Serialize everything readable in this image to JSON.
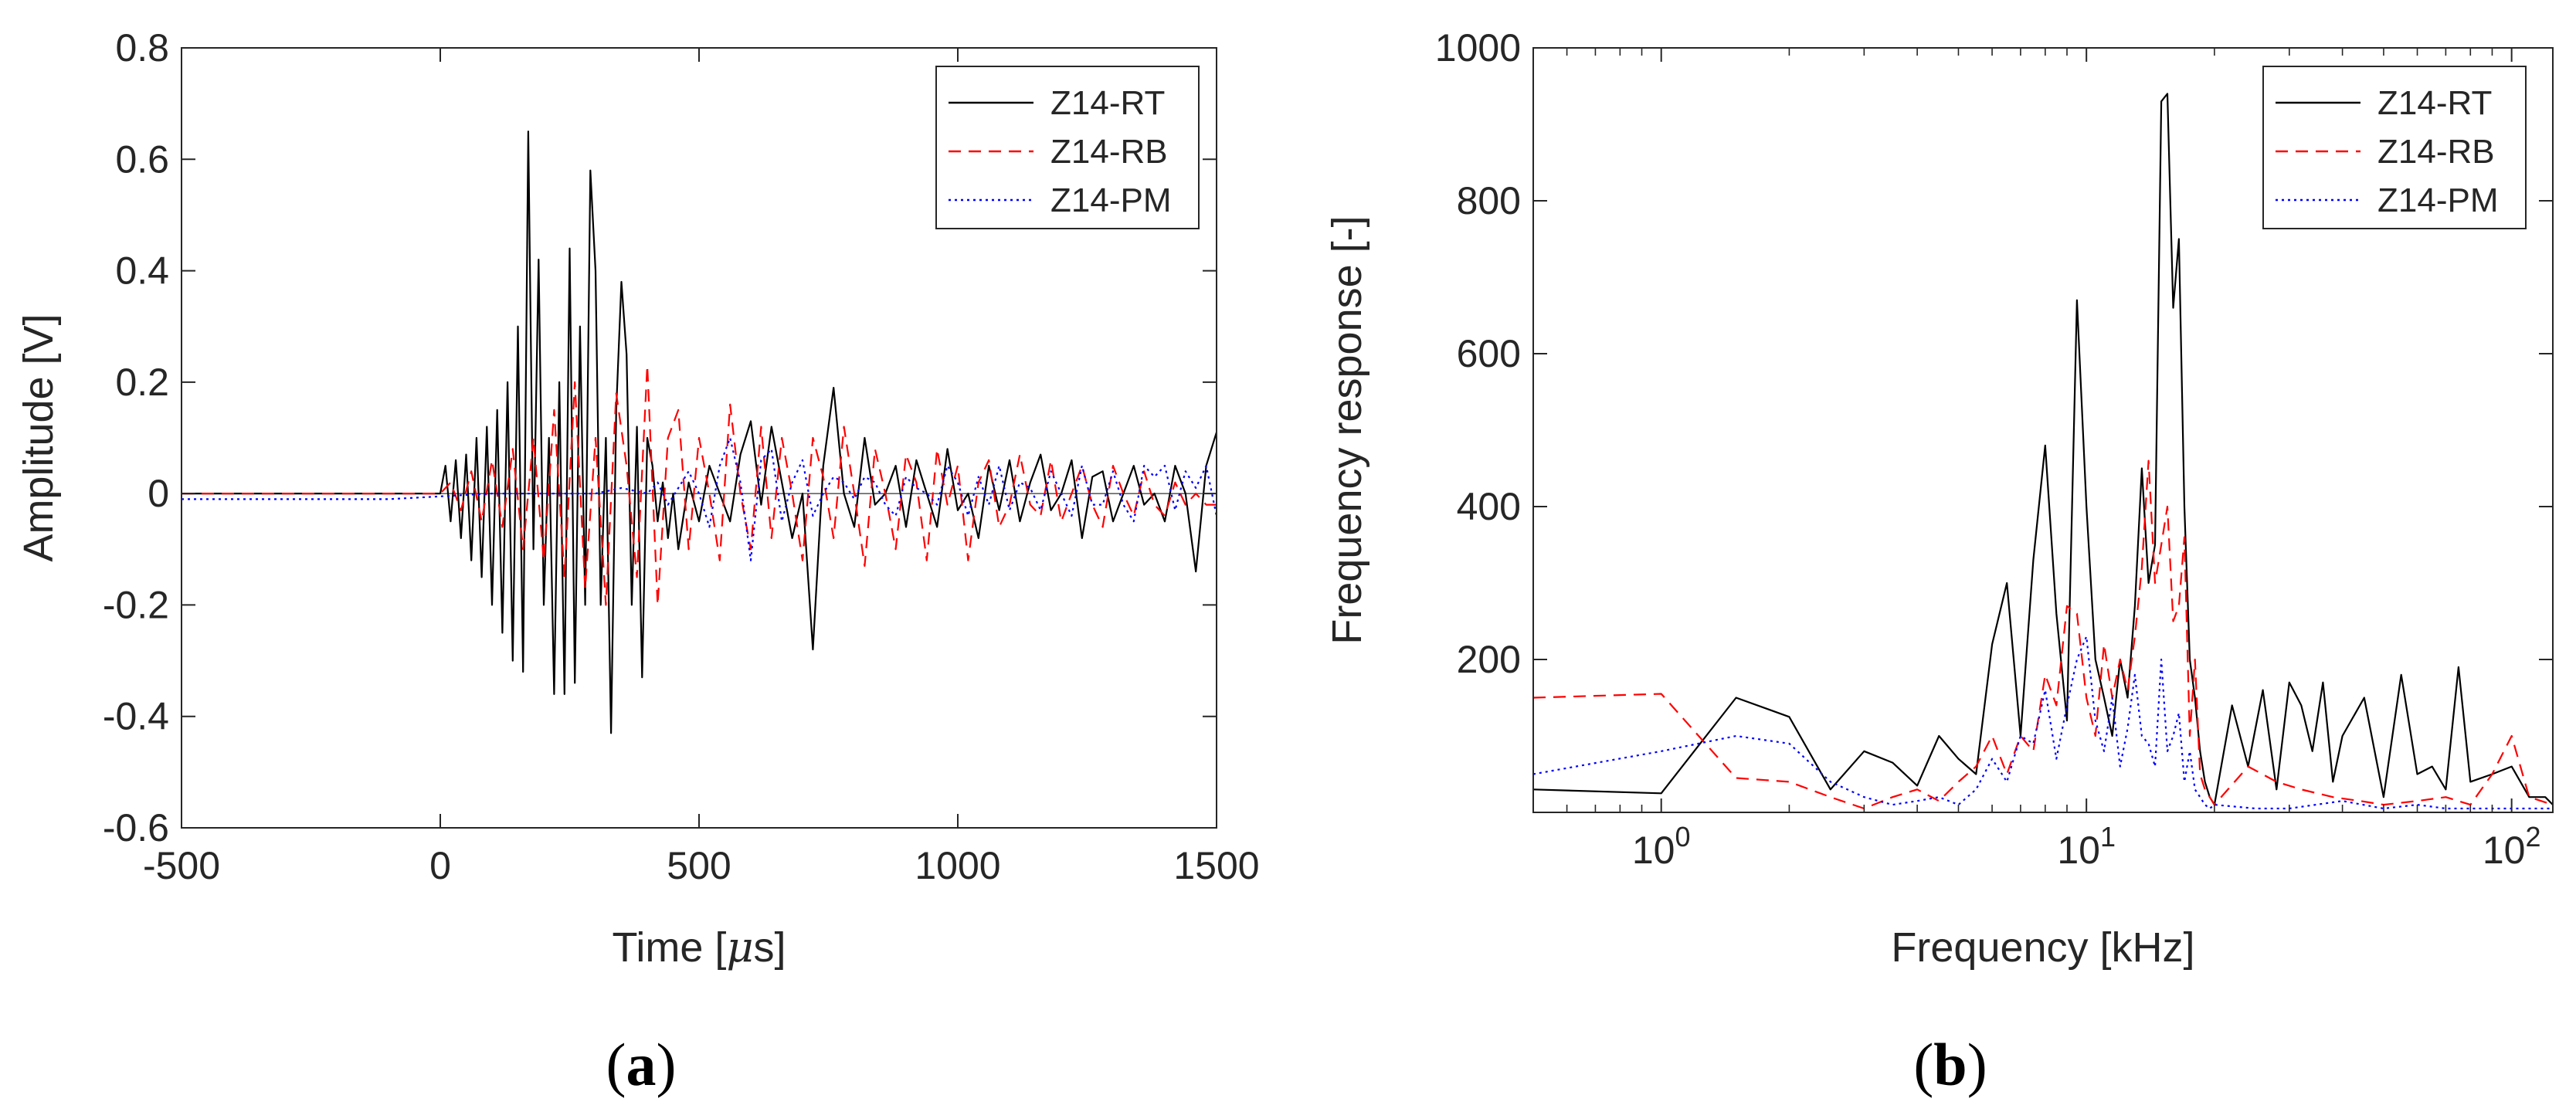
{
  "chart_data": [
    {
      "type": "line",
      "panel_label": {
        "open": "(",
        "letter": "a",
        "close": ")"
      },
      "xlabel": {
        "prefix": "Time [",
        "symbol": "μ",
        "suffix": "s]"
      },
      "ylabel": "Amplitude [V]",
      "xlim": [
        -500,
        1500
      ],
      "ylim": [
        -0.6,
        0.8
      ],
      "xscale": "linear",
      "xticks": [
        -500,
        0,
        500,
        1000,
        1500
      ],
      "xtick_labels": [
        "-500",
        "0",
        "500",
        "1000",
        "1500"
      ],
      "yticks": [
        -0.6,
        -0.4,
        -0.2,
        0,
        0.2,
        0.4,
        0.6,
        0.8
      ],
      "ytick_labels": [
        "-0.6",
        "-0.4",
        "-0.2",
        "0",
        "0.2",
        "0.4",
        "0.6",
        "0.8"
      ],
      "legend_position": "top-right",
      "series": [
        {
          "name": "Z14-RT",
          "color": "#000000",
          "style": "solid",
          "x": [
            -500,
            -400,
            -300,
            -200,
            -100,
            0,
            10,
            20,
            30,
            40,
            50,
            60,
            70,
            80,
            90,
            100,
            110,
            120,
            130,
            140,
            150,
            160,
            170,
            180,
            190,
            200,
            210,
            220,
            230,
            240,
            250,
            260,
            270,
            280,
            290,
            300,
            310,
            320,
            330,
            340,
            350,
            360,
            370,
            380,
            390,
            400,
            410,
            420,
            430,
            440,
            450,
            460,
            480,
            500,
            520,
            540,
            560,
            580,
            600,
            620,
            640,
            660,
            680,
            700,
            720,
            740,
            760,
            780,
            800,
            820,
            840,
            860,
            880,
            900,
            920,
            940,
            960,
            980,
            1000,
            1020,
            1040,
            1060,
            1080,
            1100,
            1120,
            1140,
            1160,
            1180,
            1200,
            1220,
            1240,
            1260,
            1280,
            1300,
            1320,
            1340,
            1360,
            1380,
            1400,
            1420,
            1440,
            1460,
            1480,
            1500
          ],
          "y": [
            0,
            0,
            0,
            0,
            0,
            0,
            0.05,
            -0.05,
            0.06,
            -0.08,
            0.07,
            -0.12,
            0.1,
            -0.15,
            0.12,
            -0.2,
            0.15,
            -0.25,
            0.2,
            -0.3,
            0.3,
            -0.32,
            0.65,
            -0.1,
            0.42,
            -0.2,
            0.1,
            -0.36,
            0.2,
            -0.36,
            0.44,
            -0.34,
            0.3,
            -0.2,
            0.58,
            0.4,
            -0.2,
            0.1,
            -0.43,
            0.15,
            0.38,
            0.25,
            -0.2,
            0.12,
            -0.33,
            0.1,
            0.05,
            -0.05,
            0.02,
            -0.08,
            0.0,
            -0.1,
            0.02,
            -0.05,
            0.05,
            0.0,
            -0.05,
            0.07,
            0.13,
            -0.02,
            0.12,
            0.02,
            -0.08,
            0.0,
            -0.28,
            0.05,
            0.19,
            0.0,
            -0.06,
            0.1,
            -0.02,
            0.0,
            0.05,
            -0.06,
            0.06,
            0.0,
            -0.06,
            0.08,
            -0.03,
            0.0,
            -0.08,
            0.05,
            -0.03,
            0.06,
            -0.05,
            0.02,
            0.07,
            -0.03,
            0.0,
            0.06,
            -0.08,
            0.03,
            0.04,
            -0.05,
            0.0,
            0.05,
            -0.02,
            0.0,
            -0.05,
            0.05,
            0.0,
            -0.14,
            0.05,
            0.11
          ]
        },
        {
          "name": "Z14-RB",
          "color": "#ff0000",
          "style": "dashed",
          "x": [
            -500,
            -400,
            -300,
            -200,
            -100,
            0,
            20,
            40,
            60,
            80,
            100,
            120,
            140,
            160,
            180,
            200,
            220,
            240,
            260,
            280,
            300,
            320,
            340,
            360,
            380,
            400,
            420,
            440,
            460,
            480,
            500,
            520,
            540,
            560,
            580,
            600,
            620,
            640,
            660,
            680,
            700,
            720,
            740,
            760,
            780,
            800,
            820,
            840,
            860,
            880,
            900,
            920,
            940,
            960,
            980,
            1000,
            1020,
            1040,
            1060,
            1080,
            1100,
            1120,
            1140,
            1160,
            1180,
            1200,
            1220,
            1240,
            1260,
            1280,
            1300,
            1320,
            1340,
            1360,
            1380,
            1400,
            1420,
            1440,
            1460,
            1480,
            1500
          ],
          "y": [
            0,
            0,
            0,
            0,
            0,
            0,
            0.02,
            -0.03,
            0.04,
            -0.05,
            0.06,
            -0.06,
            0.08,
            -0.1,
            0.1,
            -0.12,
            0.15,
            -0.15,
            0.2,
            -0.17,
            0.1,
            -0.2,
            0.18,
            0.05,
            -0.15,
            0.23,
            -0.2,
            0.1,
            0.15,
            -0.1,
            0.1,
            0.0,
            -0.12,
            0.16,
            0.0,
            -0.1,
            0.12,
            -0.08,
            0.1,
            0.0,
            -0.12,
            0.1,
            0.03,
            -0.08,
            0.12,
            0.0,
            -0.13,
            0.08,
            0.0,
            -0.1,
            0.07,
            0.02,
            -0.12,
            0.08,
            -0.02,
            0.05,
            -0.12,
            0.02,
            0.06,
            -0.06,
            -0.02,
            0.07,
            -0.02,
            -0.04,
            0.06,
            -0.05,
            0.0,
            0.05,
            -0.02,
            -0.06,
            0.05,
            0.0,
            -0.04,
            0.04,
            -0.02,
            -0.04,
            0.02,
            -0.02,
            0.0,
            -0.02,
            -0.02
          ]
        },
        {
          "name": "Z14-PM",
          "color": "#0000ff",
          "style": "dotted",
          "x": [
            -500,
            -300,
            -100,
            0,
            100,
            200,
            300,
            350,
            400,
            420,
            440,
            460,
            480,
            500,
            520,
            540,
            560,
            580,
            600,
            620,
            640,
            660,
            680,
            700,
            720,
            740,
            760,
            780,
            800,
            820,
            840,
            860,
            880,
            900,
            920,
            940,
            960,
            980,
            1000,
            1020,
            1040,
            1060,
            1080,
            1100,
            1120,
            1140,
            1160,
            1180,
            1200,
            1220,
            1240,
            1260,
            1280,
            1300,
            1320,
            1340,
            1360,
            1380,
            1400,
            1420,
            1440,
            1460,
            1480,
            1500
          ],
          "y": [
            -0.01,
            -0.01,
            -0.01,
            -0.005,
            0.0,
            0.0,
            0.0,
            0.01,
            0.0,
            0.02,
            -0.02,
            0.01,
            0.04,
            0.0,
            -0.06,
            0.05,
            0.1,
            0.02,
            -0.12,
            0.06,
            0.08,
            -0.05,
            0.02,
            0.06,
            -0.04,
            0.0,
            0.03,
            0.02,
            -0.01,
            0.03,
            0.02,
            -0.02,
            -0.04,
            0.03,
            0.01,
            0.0,
            -0.02,
            0.05,
            0.02,
            -0.04,
            0.03,
            -0.02,
            0.05,
            -0.03,
            0.02,
            0.01,
            -0.03,
            0.04,
            0.0,
            -0.04,
            0.05,
            -0.02,
            -0.02,
            0.04,
            -0.02,
            -0.05,
            0.05,
            0.03,
            0.05,
            -0.03,
            0.04,
            0.01,
            0.05,
            -0.04
          ]
        }
      ]
    },
    {
      "type": "line",
      "panel_label": {
        "open": "(",
        "letter": "b",
        "close": ")"
      },
      "xlabel": "Frequency [kHz]",
      "ylabel": "Frequency response [-]",
      "xlim": [
        0.5,
        125
      ],
      "ylim": [
        0,
        1000
      ],
      "xscale": "log",
      "xticks": [
        1,
        10,
        100
      ],
      "xtick_labels": [
        {
          "base": "10",
          "exp": "0"
        },
        {
          "base": "10",
          "exp": "1"
        },
        {
          "base": "10",
          "exp": "2"
        }
      ],
      "yticks": [
        200,
        400,
        600,
        800,
        1000
      ],
      "ytick_labels": [
        "200",
        "400",
        "600",
        "800",
        "1000"
      ],
      "legend_position": "top-right",
      "series": [
        {
          "name": "Z14-RT",
          "color": "#000000",
          "style": "solid",
          "x": [
            0.5,
            1.0,
            1.5,
            2.0,
            2.5,
            3.0,
            3.5,
            4.0,
            4.5,
            5.0,
            5.5,
            6.0,
            6.5,
            7.0,
            7.5,
            8.0,
            8.5,
            9.0,
            9.5,
            10.0,
            10.5,
            11.0,
            11.5,
            12.0,
            12.5,
            13.0,
            13.5,
            14.0,
            14.5,
            15.0,
            15.5,
            16.0,
            16.5,
            17.0,
            17.5,
            18.0,
            18.5,
            19.0,
            19.5,
            20.0,
            22,
            24,
            26,
            28,
            30,
            32,
            34,
            36,
            38,
            40,
            45,
            50,
            55,
            60,
            65,
            70,
            75,
            80,
            90,
            100,
            110,
            120,
            125
          ],
          "y": [
            30,
            25,
            150,
            125,
            30,
            80,
            65,
            35,
            100,
            70,
            50,
            220,
            300,
            100,
            330,
            480,
            260,
            120,
            670,
            400,
            200,
            150,
            100,
            200,
            150,
            270,
            450,
            300,
            350,
            930,
            940,
            660,
            750,
            400,
            200,
            150,
            80,
            40,
            20,
            10,
            140,
            60,
            160,
            30,
            170,
            140,
            80,
            170,
            40,
            100,
            150,
            20,
            180,
            50,
            60,
            30,
            190,
            40,
            50,
            60,
            20,
            20,
            10
          ]
        },
        {
          "name": "Z14-RB",
          "color": "#ff0000",
          "style": "dashed",
          "x": [
            0.5,
            1.0,
            1.5,
            2.0,
            2.5,
            3.0,
            3.5,
            4.0,
            4.5,
            5.0,
            5.5,
            6.0,
            6.5,
            7.0,
            7.5,
            8.0,
            8.5,
            9.0,
            9.5,
            10.0,
            10.5,
            11.0,
            11.5,
            12.0,
            12.5,
            13.0,
            13.5,
            14.0,
            14.5,
            15.0,
            15.5,
            16.0,
            16.5,
            17.0,
            17.5,
            18.0,
            18.5,
            19.0,
            19.5,
            20.0,
            24,
            28,
            32,
            38,
            44,
            50,
            60,
            70,
            80,
            90,
            100,
            110,
            125
          ],
          "y": [
            150,
            155,
            45,
            40,
            20,
            5,
            20,
            30,
            15,
            40,
            60,
            100,
            50,
            100,
            80,
            180,
            140,
            270,
            260,
            150,
            100,
            220,
            150,
            200,
            160,
            230,
            320,
            460,
            300,
            350,
            400,
            250,
            270,
            360,
            100,
            200,
            50,
            30,
            20,
            10,
            60,
            40,
            30,
            20,
            15,
            10,
            15,
            20,
            10,
            50,
            100,
            20,
            10
          ]
        },
        {
          "name": "Z14-PM",
          "color": "#0000ff",
          "style": "dotted",
          "x": [
            0.5,
            1.0,
            1.5,
            2.0,
            2.5,
            3.0,
            3.5,
            4.0,
            4.5,
            5.0,
            5.5,
            6.0,
            6.5,
            7.0,
            7.5,
            8.0,
            8.5,
            9.0,
            9.5,
            10.0,
            10.5,
            11.0,
            11.5,
            12.0,
            12.5,
            13.0,
            13.5,
            14.0,
            14.5,
            15.0,
            15.5,
            16.0,
            16.5,
            17.0,
            17.5,
            18.0,
            18.5,
            19.0,
            19.5,
            20.0,
            25,
            30,
            40,
            50,
            60,
            70,
            80,
            90,
            100,
            110,
            125
          ],
          "y": [
            50,
            80,
            100,
            90,
            40,
            20,
            10,
            15,
            20,
            10,
            30,
            70,
            40,
            100,
            90,
            160,
            70,
            140,
            200,
            230,
            120,
            80,
            150,
            60,
            110,
            180,
            100,
            90,
            60,
            200,
            80,
            100,
            130,
            40,
            80,
            30,
            20,
            10,
            5,
            10,
            5,
            5,
            15,
            5,
            10,
            5,
            5,
            5,
            5,
            5,
            5
          ]
        }
      ]
    }
  ]
}
